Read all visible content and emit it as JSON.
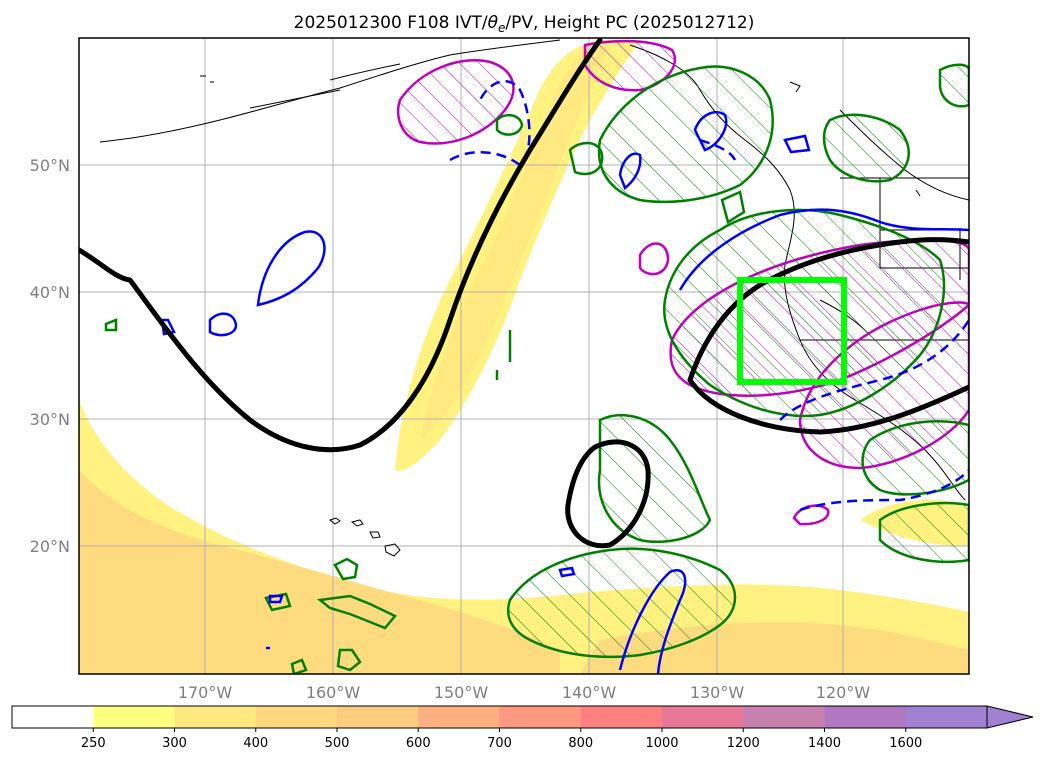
{
  "title": "2025012300 F108 IVT/θe/PV, Height PC (2025012712)",
  "title_parts": {
    "prefix": "2025012300 F108 IVT/",
    "theta": "θ",
    "sub": "e",
    "suffix": "/PV, Height PC (2025012712)"
  },
  "map": {
    "lat_ticks": [
      "50°N",
      "40°N",
      "30°N",
      "20°N"
    ],
    "lon_ticks": [
      "170°W",
      "160°W",
      "150°W",
      "140°W",
      "130°W",
      "120°W"
    ],
    "lat_values": [
      50,
      40,
      30,
      20
    ],
    "lon_values": [
      -170,
      -160,
      -150,
      -140,
      -130,
      -120
    ],
    "extent": {
      "lon_min": -180,
      "lon_max": -110.3,
      "lat_min": 10.3,
      "lat_max": 60
    },
    "box_region": {
      "lon": [
        -128.5,
        -120.2
      ],
      "lat": [
        33,
        41
      ]
    },
    "colors": {
      "height_contour": "#000000",
      "theta_e": "#0000ff",
      "pv": "#008000",
      "box": "#00ff00",
      "ivt_overlay": "#bf00bf"
    }
  },
  "colorbar": {
    "labels": [
      "250",
      "300",
      "400",
      "500",
      "600",
      "700",
      "800",
      "1000",
      "1200",
      "1400",
      "1600"
    ],
    "colors": [
      "#ffffff",
      "#ffff80",
      "#ffe880",
      "#ffd880",
      "#ffcc80",
      "#ffb080",
      "#ff9880",
      "#ff8080",
      "#e87898",
      "#c880b0",
      "#b078c0",
      "#a080d0"
    ],
    "extend": "max"
  }
}
